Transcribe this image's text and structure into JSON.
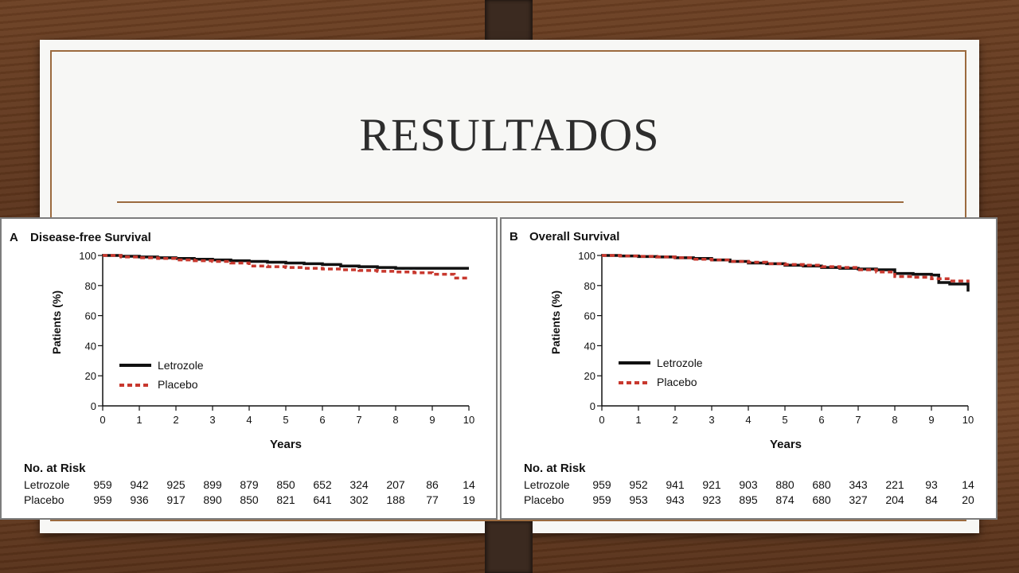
{
  "slide": {
    "title": "RESULTADOS"
  },
  "chart_data": [
    {
      "type": "line",
      "panel_letter": "A",
      "title": "Disease-free Survival",
      "xlabel": "Years",
      "ylabel": "Patients (%)",
      "xlim": [
        0,
        10
      ],
      "ylim": [
        0,
        100
      ],
      "xticks": [
        0,
        1,
        2,
        3,
        4,
        5,
        6,
        7,
        8,
        9,
        10
      ],
      "yticks": [
        0,
        20,
        40,
        60,
        80,
        100
      ],
      "legend_position": "lower-left",
      "series": [
        {
          "name": "Letrozole",
          "color": "#111111",
          "style": "solid",
          "x": [
            0,
            0.5,
            1,
            1.5,
            2,
            2.5,
            3,
            3.5,
            4,
            4.5,
            5,
            5.5,
            6,
            6.5,
            7,
            7.5,
            8,
            8.5,
            9,
            9.5,
            10
          ],
          "y": [
            100,
            99.5,
            99,
            98.5,
            98,
            97.5,
            97,
            96.5,
            96,
            95.5,
            95,
            94.5,
            94,
            93,
            92.5,
            92,
            91.5,
            91.5,
            91.5,
            91.5,
            91.5
          ]
        },
        {
          "name": "Placebo",
          "color": "#c8382e",
          "style": "dashed",
          "x": [
            0,
            0.5,
            1,
            1.5,
            2,
            2.5,
            3,
            3.5,
            4,
            4.5,
            5,
            5.5,
            6,
            6.5,
            7,
            7.5,
            8,
            8.5,
            9,
            9.5,
            9.6,
            10
          ],
          "y": [
            100,
            99,
            98.5,
            98,
            97,
            96.5,
            96,
            95,
            93,
            92.5,
            92,
            91.5,
            91,
            90.5,
            90,
            89.5,
            89,
            88.5,
            87.5,
            87.5,
            85,
            85
          ]
        }
      ],
      "risk_table": {
        "heading": "No. at Risk",
        "rows": [
          {
            "label": "Letrozole",
            "values": [
              "959",
              "942",
              "925",
              "899",
              "879",
              "850",
              "652",
              "324",
              "207",
              "86",
              "14"
            ]
          },
          {
            "label": "Placebo",
            "values": [
              "959",
              "936",
              "917",
              "890",
              "850",
              "821",
              "641",
              "302",
              "188",
              "77",
              "19"
            ]
          }
        ]
      }
    },
    {
      "type": "line",
      "panel_letter": "B",
      "title": "Overall Survival",
      "xlabel": "Years",
      "ylabel": "Patients (%)",
      "xlim": [
        0,
        10
      ],
      "ylim": [
        0,
        100
      ],
      "xticks": [
        0,
        1,
        2,
        3,
        4,
        5,
        6,
        7,
        8,
        9,
        10
      ],
      "yticks": [
        0,
        20,
        40,
        60,
        80,
        100
      ],
      "legend_position": "lower-left",
      "series": [
        {
          "name": "Letrozole",
          "color": "#111111",
          "style": "solid",
          "x": [
            0,
            0.5,
            1,
            1.5,
            2,
            2.5,
            3,
            3.5,
            4,
            4.5,
            5,
            5.5,
            6,
            6.5,
            7,
            7.5,
            8,
            8.5,
            9,
            9.2,
            9.5,
            9.95,
            10
          ],
          "y": [
            100,
            99.7,
            99.3,
            99,
            98.5,
            98,
            97,
            96,
            95,
            94.5,
            93.5,
            93,
            92,
            91.5,
            91,
            90.5,
            88,
            87.5,
            87,
            82,
            81,
            81,
            76
          ]
        },
        {
          "name": "Placebo",
          "color": "#c8382e",
          "style": "dashed",
          "x": [
            0,
            0.5,
            1,
            1.5,
            2,
            2.5,
            3,
            3.5,
            4,
            4.5,
            5,
            5.5,
            6,
            6.5,
            7,
            7.5,
            8,
            8.5,
            9,
            9.5,
            10
          ],
          "y": [
            100,
            99.7,
            99.4,
            99,
            98.5,
            97.5,
            97,
            96,
            95.5,
            94.5,
            94,
            93.5,
            92.5,
            92,
            90.5,
            89,
            86,
            85.5,
            84.5,
            83,
            82
          ]
        }
      ],
      "risk_table": {
        "heading": "No. at Risk",
        "rows": [
          {
            "label": "Letrozole",
            "values": [
              "959",
              "952",
              "941",
              "921",
              "903",
              "880",
              "680",
              "343",
              "221",
              "93",
              "14"
            ]
          },
          {
            "label": "Placebo",
            "values": [
              "959",
              "953",
              "943",
              "923",
              "895",
              "874",
              "680",
              "327",
              "204",
              "84",
              "20"
            ]
          }
        ]
      }
    }
  ]
}
